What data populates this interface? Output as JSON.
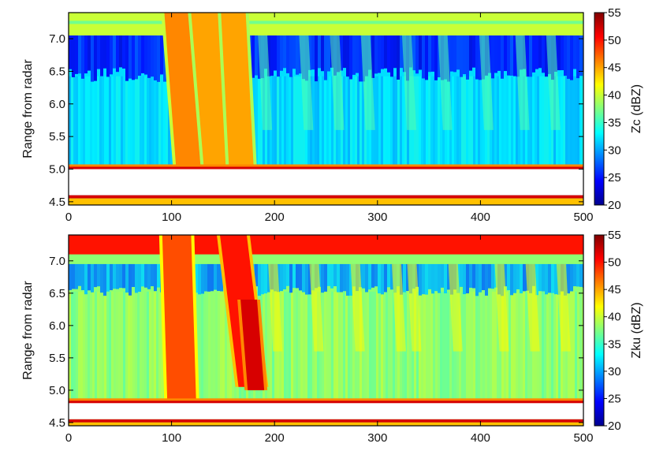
{
  "chart_data": [
    {
      "type": "heatmap",
      "title": "",
      "xlabel": "",
      "ylabel": "Range from radar",
      "colorbar_label": "Zc (dBZ)",
      "xlim": [
        0,
        500
      ],
      "ylim": [
        4.45,
        7.4
      ],
      "x_ticks": [
        0,
        100,
        200,
        300,
        400,
        500
      ],
      "y_ticks": [
        4.5,
        5.0,
        5.5,
        6.0,
        6.5,
        7.0
      ],
      "colorbar_range": [
        20,
        55
      ],
      "colorbar_ticks": [
        20,
        25,
        30,
        35,
        40,
        45,
        50,
        55
      ],
      "colormap": [
        "#00008f",
        "#0000ff",
        "#0080ff",
        "#00ffff",
        "#80ff80",
        "#ffff00",
        "#ff8000",
        "#ff0000",
        "#800000"
      ],
      "background_dbz": 32,
      "top_clutter_band": {
        "range": [
          7.05,
          7.4
        ],
        "dbz": 40
      },
      "top_clutter_line": {
        "range": 7.25,
        "dbz": 37
      },
      "blue_layer": {
        "range": [
          6.4,
          7.05
        ],
        "dbz": 25
      },
      "surface": {
        "upper_edge_range": 5.0,
        "lower_edge_range": 4.6,
        "edge_dbz": 52,
        "gap_color": "#ffffff"
      },
      "precip_shafts": [
        {
          "x_top": 105,
          "x_bottom": 117,
          "width": 24,
          "top": 7.4,
          "bottom": 4.9,
          "dbz": 46
        },
        {
          "x_top": 132,
          "x_bottom": 145,
          "width": 26,
          "top": 7.4,
          "bottom": 4.9,
          "dbz": 45
        },
        {
          "x_top": 160,
          "x_bottom": 168,
          "width": 24,
          "top": 7.4,
          "bottom": 4.95,
          "dbz": 45
        }
      ],
      "fall_streaks_x": [
        190,
        230,
        260,
        290,
        330,
        365,
        405,
        440,
        470
      ]
    },
    {
      "type": "heatmap",
      "title": "",
      "xlabel": "",
      "ylabel": "Range from radar",
      "colorbar_label": "Zku (dBZ)",
      "xlim": [
        0,
        500
      ],
      "ylim": [
        4.45,
        7.4
      ],
      "x_ticks": [
        0,
        100,
        200,
        300,
        400,
        500
      ],
      "y_ticks": [
        4.5,
        5.0,
        5.5,
        6.0,
        6.5,
        7.0
      ],
      "colorbar_range": [
        20,
        55
      ],
      "colorbar_ticks": [
        20,
        25,
        30,
        35,
        40,
        45,
        50,
        55
      ],
      "colormap": [
        "#00008f",
        "#0000ff",
        "#0080ff",
        "#00ffff",
        "#80ff80",
        "#ffff00",
        "#ff8000",
        "#ff0000",
        "#800000"
      ],
      "background_dbz": 38,
      "top_clutter_band": {
        "range": [
          7.1,
          7.4
        ],
        "dbz": 50
      },
      "blue_layer": {
        "range": [
          6.5,
          6.95
        ],
        "dbz": 30
      },
      "surface": {
        "upper_edge_range": 4.8,
        "lower_edge_range": 4.55,
        "edge_dbz": 52,
        "gap_color": "#ffffff"
      },
      "precip_shafts": [
        {
          "x_top": 105,
          "x_bottom": 110,
          "width": 28,
          "top": 7.4,
          "bottom": 4.75,
          "dbz": 48
        },
        {
          "x_top": 160,
          "x_bottom": 178,
          "width": 26,
          "top": 7.4,
          "bottom": 5.05,
          "dbz": 50
        },
        {
          "x_top": 175,
          "x_bottom": 182,
          "width": 16,
          "top": 6.4,
          "bottom": 5.0,
          "dbz": 52
        }
      ],
      "fall_streaks_x": [
        200,
        240,
        280,
        320,
        335,
        375,
        420,
        450,
        480
      ]
    }
  ]
}
